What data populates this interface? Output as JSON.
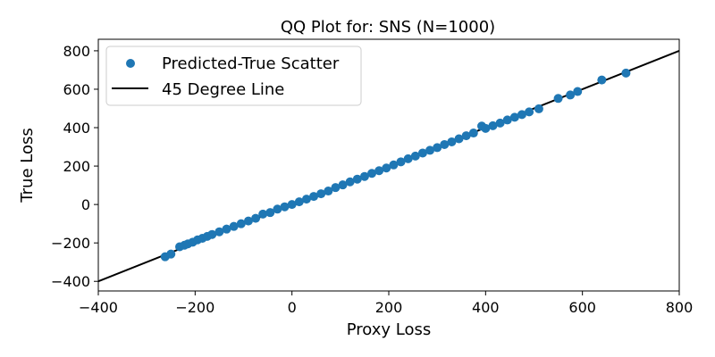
{
  "chart_data": {
    "type": "scatter",
    "title": "QQ Plot for: SNS (N=1000)",
    "xlabel": "Proxy Loss",
    "ylabel": "True Loss",
    "xlim": [
      -400,
      800
    ],
    "ylim": [
      -450,
      860
    ],
    "xticks": [
      -400,
      -200,
      0,
      200,
      400,
      600,
      800
    ],
    "yticks": [
      -400,
      -200,
      0,
      200,
      400,
      600,
      800
    ],
    "grid": false,
    "legend_position": "top-left",
    "series": [
      {
        "name": "Predicted-True Scatter",
        "kind": "scatter",
        "color": "#1f77b4",
        "x": [
          -262,
          -250,
          -232,
          -222,
          -215,
          -205,
          -195,
          -185,
          -175,
          -165,
          -150,
          -135,
          -120,
          -105,
          -90,
          -75,
          -60,
          -45,
          -30,
          -15,
          0,
          15,
          30,
          45,
          60,
          75,
          90,
          105,
          120,
          135,
          150,
          165,
          180,
          195,
          210,
          225,
          240,
          255,
          270,
          285,
          300,
          315,
          330,
          345,
          360,
          375,
          392,
          400,
          415,
          430,
          445,
          460,
          475,
          490,
          510,
          550,
          575,
          590,
          640,
          690
        ],
        "y": [
          -272,
          -258,
          -220,
          -212,
          -205,
          -196,
          -184,
          -176,
          -166,
          -156,
          -142,
          -128,
          -114,
          -100,
          -86,
          -72,
          -50,
          -42,
          -24,
          -12,
          0,
          14,
          28,
          42,
          56,
          70,
          88,
          102,
          118,
          132,
          146,
          162,
          176,
          190,
          206,
          222,
          238,
          252,
          268,
          282,
          296,
          312,
          326,
          342,
          358,
          372,
          408,
          396,
          410,
          424,
          440,
          454,
          468,
          482,
          498,
          552,
          570,
          588,
          648,
          684
        ]
      },
      {
        "name": "45 Degree Line",
        "kind": "line",
        "color": "#000000",
        "x": [
          -400,
          800
        ],
        "y": [
          -400,
          800
        ]
      }
    ]
  }
}
